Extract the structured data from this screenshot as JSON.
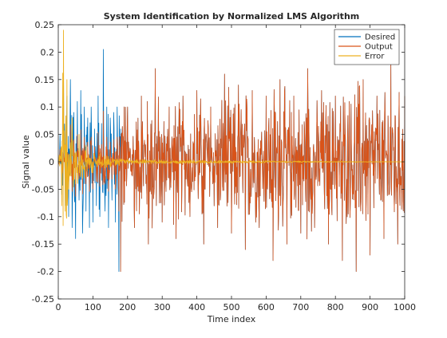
{
  "chart_data": {
    "type": "line",
    "title": "System Identification by Normalized LMS Algorithm",
    "xlabel": "Time index",
    "ylabel": "Signal value",
    "xlim": [
      0,
      1000
    ],
    "ylim": [
      -0.25,
      0.25
    ],
    "x_ticks": [
      0,
      100,
      200,
      300,
      400,
      500,
      600,
      700,
      800,
      900,
      1000
    ],
    "y_ticks": [
      -0.25,
      -0.2,
      -0.15,
      -0.1,
      -0.05,
      0,
      0.05,
      0.1,
      0.15,
      0.2,
      0.25
    ],
    "x_tick_labels": [
      "0",
      "100",
      "200",
      "300",
      "400",
      "500",
      "600",
      "700",
      "800",
      "900",
      "1000"
    ],
    "y_tick_labels": [
      "-0.25",
      "-0.2",
      "-0.15",
      "-0.1",
      "-0.05",
      "0",
      "0.05",
      "0.1",
      "0.15",
      "0.2",
      "0.25"
    ],
    "grid": false,
    "legend_position": "top-right",
    "series": [
      {
        "name": "Desired",
        "color": "#0072BD",
        "description": "identical to Output after convergence (~samples 200-1000)",
        "peaks": [
          {
            "x": 0,
            "y": 0
          },
          {
            "x": 5,
            "y": 0.05
          },
          {
            "x": 10,
            "y": -0.06
          },
          {
            "x": 15,
            "y": 0.18
          },
          {
            "x": 20,
            "y": -0.08
          },
          {
            "x": 25,
            "y": 0.12
          },
          {
            "x": 30,
            "y": -0.1
          },
          {
            "x": 35,
            "y": 0.15
          },
          {
            "x": 40,
            "y": -0.12
          },
          {
            "x": 45,
            "y": 0.09
          },
          {
            "x": 50,
            "y": -0.14
          },
          {
            "x": 55,
            "y": 0.11
          },
          {
            "x": 60,
            "y": -0.07
          },
          {
            "x": 65,
            "y": 0.13
          },
          {
            "x": 70,
            "y": -0.13
          },
          {
            "x": 75,
            "y": 0.1
          },
          {
            "x": 80,
            "y": -0.09
          },
          {
            "x": 85,
            "y": 0.08
          },
          {
            "x": 90,
            "y": -0.12
          },
          {
            "x": 95,
            "y": 0.1
          },
          {
            "x": 100,
            "y": -0.11
          },
          {
            "x": 105,
            "y": 0.06
          },
          {
            "x": 110,
            "y": -0.08
          },
          {
            "x": 115,
            "y": 0.12
          },
          {
            "x": 120,
            "y": -0.1
          },
          {
            "x": 125,
            "y": 0.07
          },
          {
            "x": 130,
            "y": 0.205
          },
          {
            "x": 135,
            "y": -0.09
          },
          {
            "x": 140,
            "y": 0.1
          },
          {
            "x": 145,
            "y": -0.12
          },
          {
            "x": 150,
            "y": 0.08
          },
          {
            "x": 155,
            "y": -0.07
          },
          {
            "x": 160,
            "y": 0.09
          },
          {
            "x": 165,
            "y": -0.11
          },
          {
            "x": 170,
            "y": 0.1
          },
          {
            "x": 175,
            "y": -0.2
          },
          {
            "x": 180,
            "y": 0.06
          }
        ]
      },
      {
        "name": "Output",
        "color": "#D95319",
        "peaks": [
          {
            "x": 180,
            "y": -0.2
          },
          {
            "x": 200,
            "y": 0.1
          },
          {
            "x": 220,
            "y": -0.12
          },
          {
            "x": 240,
            "y": 0.12
          },
          {
            "x": 260,
            "y": -0.15
          },
          {
            "x": 280,
            "y": 0.17
          },
          {
            "x": 300,
            "y": -0.11
          },
          {
            "x": 320,
            "y": 0.1
          },
          {
            "x": 340,
            "y": -0.14
          },
          {
            "x": 360,
            "y": 0.12
          },
          {
            "x": 380,
            "y": -0.1
          },
          {
            "x": 400,
            "y": 0.13
          },
          {
            "x": 420,
            "y": -0.15
          },
          {
            "x": 440,
            "y": 0.1
          },
          {
            "x": 460,
            "y": -0.12
          },
          {
            "x": 480,
            "y": 0.16
          },
          {
            "x": 500,
            "y": -0.13
          },
          {
            "x": 520,
            "y": 0.14
          },
          {
            "x": 540,
            "y": -0.16
          },
          {
            "x": 560,
            "y": 0.13
          },
          {
            "x": 580,
            "y": -0.12
          },
          {
            "x": 600,
            "y": 0.12
          },
          {
            "x": 620,
            "y": -0.18
          },
          {
            "x": 640,
            "y": 0.15
          },
          {
            "x": 660,
            "y": -0.15
          },
          {
            "x": 680,
            "y": 0.12
          },
          {
            "x": 700,
            "y": -0.13
          },
          {
            "x": 720,
            "y": 0.17
          },
          {
            "x": 740,
            "y": -0.12
          },
          {
            "x": 760,
            "y": 0.13
          },
          {
            "x": 780,
            "y": -0.15
          },
          {
            "x": 800,
            "y": 0.12
          },
          {
            "x": 820,
            "y": -0.18
          },
          {
            "x": 840,
            "y": 0.11
          },
          {
            "x": 860,
            "y": -0.2
          },
          {
            "x": 880,
            "y": 0.15
          },
          {
            "x": 900,
            "y": -0.17
          },
          {
            "x": 920,
            "y": 0.12
          },
          {
            "x": 940,
            "y": -0.14
          },
          {
            "x": 960,
            "y": 0.18
          },
          {
            "x": 980,
            "y": -0.15
          },
          {
            "x": 1000,
            "y": 0.12
          }
        ]
      },
      {
        "name": "Error",
        "color": "#EDB120",
        "peaks": [
          {
            "x": 0,
            "y": 0
          },
          {
            "x": 10,
            "y": -0.08
          },
          {
            "x": 15,
            "y": 0.24
          },
          {
            "x": 20,
            "y": -0.09
          },
          {
            "x": 25,
            "y": 0.15
          },
          {
            "x": 30,
            "y": -0.05
          },
          {
            "x": 40,
            "y": 0.08
          },
          {
            "x": 50,
            "y": -0.04
          },
          {
            "x": 60,
            "y": 0.05
          },
          {
            "x": 70,
            "y": -0.03
          },
          {
            "x": 80,
            "y": 0.03
          },
          {
            "x": 100,
            "y": -0.02
          },
          {
            "x": 120,
            "y": 0.015
          },
          {
            "x": 150,
            "y": -0.01
          },
          {
            "x": 200,
            "y": 0.005
          },
          {
            "x": 1000,
            "y": 0
          }
        ]
      }
    ]
  }
}
